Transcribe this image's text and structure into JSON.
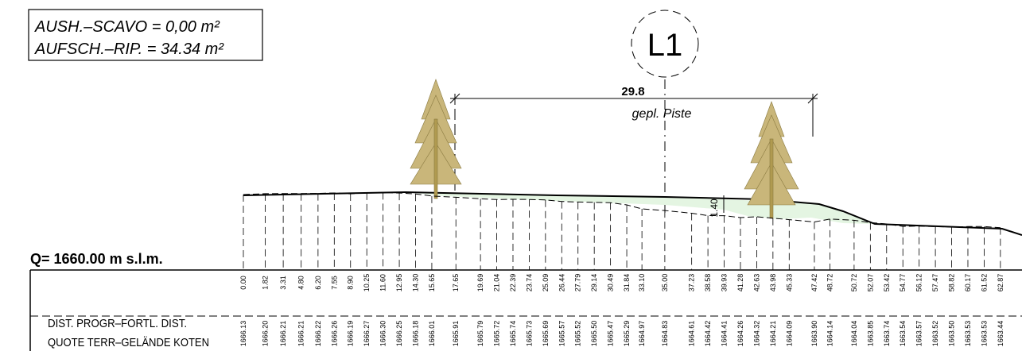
{
  "header": {
    "excavation": "AUSH.–SCAVO = 0,00 m²",
    "fill": "AUFSCH.–RIP. = 34.34 m²"
  },
  "section": {
    "label": "L1",
    "width": "29.8",
    "track": "gepl. Piste",
    "depth": "1.40",
    "datum": "Q= 1660.00 m s.l.m."
  },
  "table": {
    "distance_label": "DIST. PROGR–FORTL. DIST.",
    "elevation_label": "QUOTE TERR–GELÄNDE KOTEN",
    "distances": [
      "0.00",
      "1.82",
      "3.31",
      "4.80",
      "6.20",
      "7.55",
      "8.90",
      "10.25",
      "11.60",
      "12.95",
      "14.30",
      "15.65",
      "17.65",
      "19.69",
      "21.04",
      "22.39",
      "23.74",
      "25.09",
      "26.44",
      "27.79",
      "29.14",
      "30.49",
      "31.84",
      "33.10",
      "35.00",
      "37.23",
      "38.58",
      "39.93",
      "41.28",
      "42.63",
      "43.98",
      "45.33",
      "47.42",
      "48.72",
      "50.72",
      "52.07",
      "53.42",
      "54.77",
      "56.12",
      "57.47",
      "58.82",
      "60.17",
      "61.52",
      "62.87"
    ],
    "elevations": [
      "1666.13",
      "1666.20",
      "1666.21",
      "1666.21",
      "1666.22",
      "1666.26",
      "1666.19",
      "1666.27",
      "1666.30",
      "1666.25",
      "1666.18",
      "1666.01",
      "1665.91",
      "1665.79",
      "1665.72",
      "1665.74",
      "1665.73",
      "1665.69",
      "1665.57",
      "1665.52",
      "1665.50",
      "1665.47",
      "1665.29",
      "1664.97",
      "1664.83",
      "1664.61",
      "1664.42",
      "1664.41",
      "1664.26",
      "1664.32",
      "1664.21",
      "1664.09",
      "1663.90",
      "1664.14",
      "1664.04",
      "1663.85",
      "1663.74",
      "1663.54",
      "1663.57",
      "1663.52",
      "1663.50",
      "1663.53",
      "1663.53",
      "1663.44"
    ]
  }
}
